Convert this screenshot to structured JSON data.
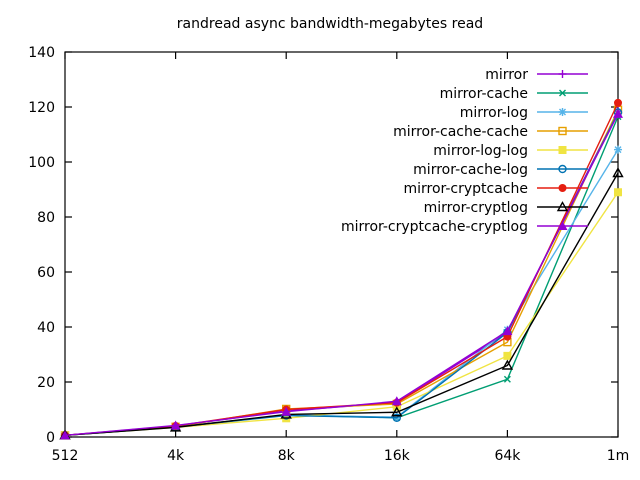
{
  "title": "randread async bandwidth-megabytes read",
  "chart_data": {
    "type": "line",
    "title": "randread async bandwidth-megabytes read",
    "xlabel": "",
    "ylabel": "",
    "categories": [
      "512",
      "4k",
      "8k",
      "16k",
      "64k",
      "1m"
    ],
    "y_ticks": [
      0,
      20,
      40,
      60,
      80,
      100,
      120,
      140
    ],
    "ylim": [
      0,
      140
    ],
    "grid": false,
    "legend_position": "top-right-inside",
    "series": [
      {
        "name": "mirror",
        "color": "#9400d3",
        "marker": "plus",
        "values": [
          0.6,
          4.0,
          9.5,
          12.5,
          38.0,
          118.5
        ]
      },
      {
        "name": "mirror-cache",
        "color": "#009e73",
        "marker": "cross",
        "values": [
          0.6,
          3.6,
          8.0,
          7.0,
          21.0,
          116.5
        ]
      },
      {
        "name": "mirror-log",
        "color": "#56b4e9",
        "marker": "star",
        "values": [
          0.6,
          3.6,
          8.0,
          7.2,
          39.0,
          104.5
        ]
      },
      {
        "name": "mirror-cache-cache",
        "color": "#e69f00",
        "marker": "square-open",
        "values": [
          0.6,
          3.7,
          10.2,
          12.0,
          34.5,
          119.0
        ]
      },
      {
        "name": "mirror-log-log",
        "color": "#f0e442",
        "marker": "square-filled",
        "values": [
          0.6,
          3.5,
          6.8,
          11.0,
          29.5,
          89.0
        ]
      },
      {
        "name": "mirror-cache-log",
        "color": "#0072b2",
        "marker": "circle-open",
        "values": [
          0.6,
          3.6,
          7.8,
          7.0,
          38.0,
          118.0
        ]
      },
      {
        "name": "mirror-cryptcache",
        "color": "#e51e10",
        "marker": "circle-filled",
        "values": [
          0.6,
          4.0,
          10.0,
          12.5,
          36.5,
          121.5
        ]
      },
      {
        "name": "mirror-cryptlog",
        "color": "#000000",
        "marker": "triangle-open",
        "values": [
          0.6,
          3.5,
          8.2,
          9.0,
          26.0,
          96.0
        ]
      },
      {
        "name": "mirror-cryptcache-cryptlog",
        "color": "#9400d3",
        "marker": "triangle-filled",
        "values": [
          0.6,
          4.2,
          9.2,
          13.0,
          38.5,
          117.5
        ]
      }
    ],
    "colors": {
      "background": "#ffffff",
      "border": "#000000",
      "text": "#000000"
    }
  }
}
